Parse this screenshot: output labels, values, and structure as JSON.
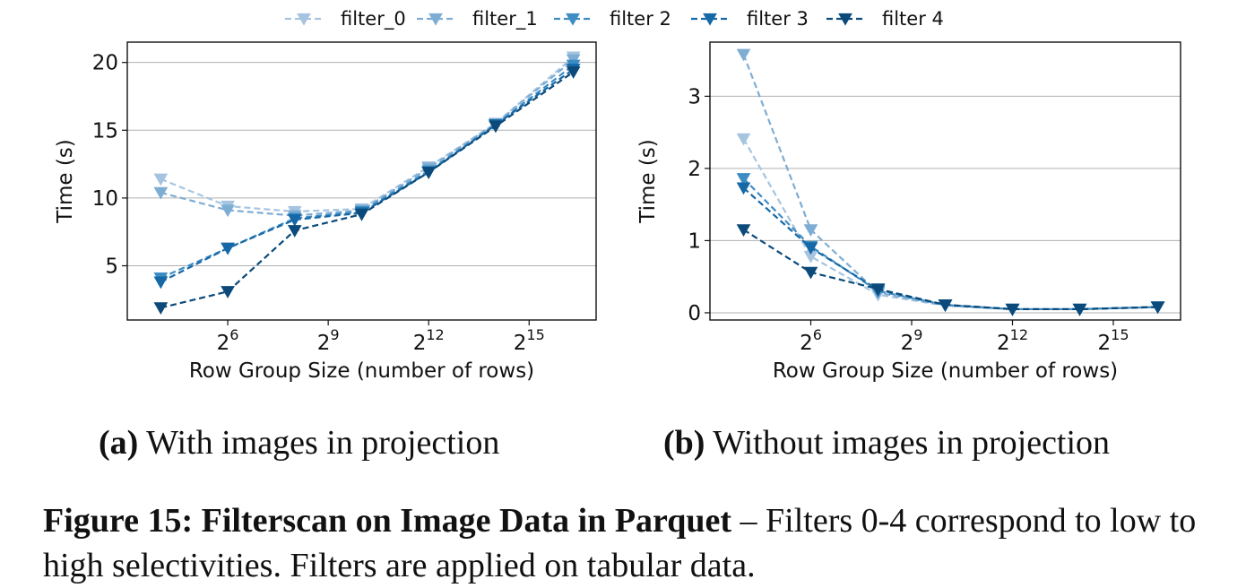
{
  "legend": [
    {
      "name": "filter_0",
      "color": "#a6c4e0"
    },
    {
      "name": "filter_1",
      "color": "#7eadd4"
    },
    {
      "name": "filter 2",
      "color": "#3d8cc4"
    },
    {
      "name": "filter 3",
      "color": "#1668a6"
    },
    {
      "name": "filter 4",
      "color": "#0b4a7a"
    }
  ],
  "chart_data": [
    {
      "type": "line",
      "subcaption_label": "(a)",
      "subcaption_text": "With images in projection",
      "xlabel": "Row Group Size (number of rows)",
      "ylabel": "Time (s)",
      "xscale": "log2",
      "xticks": [
        "2^6",
        "2^9",
        "2^12",
        "2^15"
      ],
      "yticks": [
        5,
        10,
        15,
        20
      ],
      "xlim": [
        8,
        131072
      ],
      "ylim": [
        1,
        21.5
      ],
      "grid": "y",
      "x": [
        16,
        64,
        256,
        1024,
        4096,
        16384,
        81920
      ],
      "series": [
        {
          "name": "filter_0",
          "values": [
            11.4,
            9.4,
            9.0,
            9.2,
            12.3,
            15.5,
            20.4
          ]
        },
        {
          "name": "filter_1",
          "values": [
            10.4,
            9.1,
            8.7,
            9.1,
            12.2,
            15.5,
            20.2
          ]
        },
        {
          "name": "filter 2",
          "values": [
            4.1,
            6.3,
            8.5,
            9.0,
            12.0,
            15.4,
            19.8
          ]
        },
        {
          "name": "filter 3",
          "values": [
            3.8,
            6.3,
            8.4,
            8.9,
            11.9,
            15.4,
            19.5
          ]
        },
        {
          "name": "filter 4",
          "values": [
            1.9,
            3.1,
            7.6,
            8.8,
            11.9,
            15.3,
            19.3
          ]
        }
      ]
    },
    {
      "type": "line",
      "subcaption_label": "(b)",
      "subcaption_text": "Without images in projection",
      "xlabel": "Row Group Size (number of rows)",
      "ylabel": "Time (s)",
      "xscale": "log2",
      "xticks": [
        "2^6",
        "2^9",
        "2^12",
        "2^15"
      ],
      "yticks": [
        0,
        1,
        2,
        3
      ],
      "xlim": [
        8,
        131072
      ],
      "ylim": [
        -0.1,
        3.75
      ],
      "grid": "y",
      "x": [
        16,
        64,
        256,
        1024,
        4096,
        16384,
        81920
      ],
      "series": [
        {
          "name": "filter_0",
          "values": [
            2.41,
            0.78,
            0.25,
            0.1,
            0.05,
            0.05,
            0.08
          ]
        },
        {
          "name": "filter_1",
          "values": [
            3.58,
            1.15,
            0.28,
            0.1,
            0.05,
            0.05,
            0.08
          ]
        },
        {
          "name": "filter 2",
          "values": [
            1.86,
            0.92,
            0.3,
            0.11,
            0.05,
            0.05,
            0.08
          ]
        },
        {
          "name": "filter 3",
          "values": [
            1.73,
            0.9,
            0.32,
            0.11,
            0.05,
            0.05,
            0.08
          ]
        },
        {
          "name": "filter 4",
          "values": [
            1.15,
            0.56,
            0.33,
            0.11,
            0.05,
            0.05,
            0.08
          ]
        }
      ]
    }
  ],
  "caption": {
    "title": "Figure 15: Filterscan on Image Data in Parquet",
    "body": " – Filters 0-4 correspond to low to high selectivities. Filters are applied on tabular data."
  }
}
